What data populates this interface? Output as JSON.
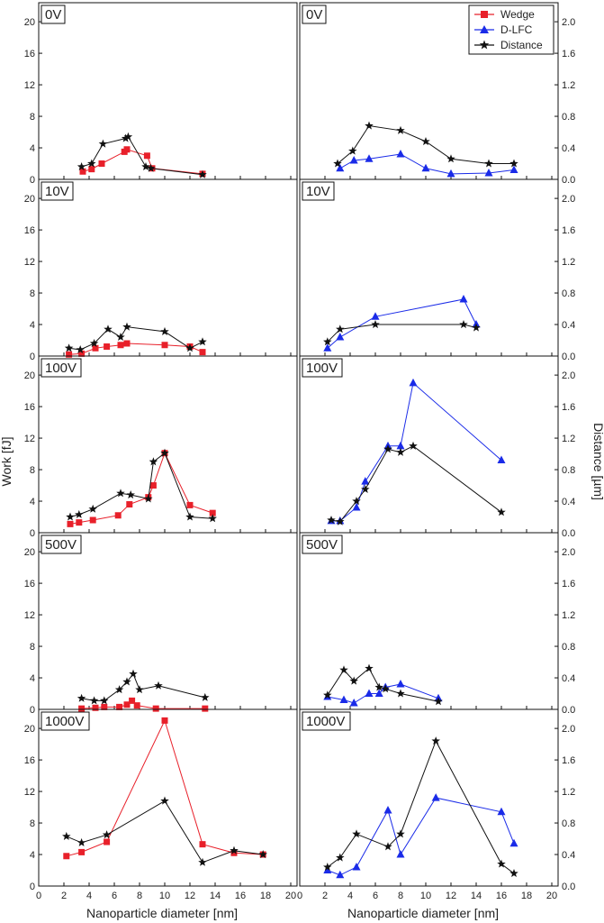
{
  "chart_data": {
    "type": "line",
    "x_label": "Nanoparticle diameter [nm]",
    "y_left_label": "Work [fJ]",
    "y_right_label": "Distance [µm]",
    "x_ticks": [
      "0",
      "2",
      "4",
      "6",
      "8",
      "10",
      "12",
      "14",
      "16",
      "18",
      "20"
    ],
    "y_left_ticks": [
      "0",
      "4",
      "8",
      "12",
      "16",
      "20"
    ],
    "y_right_ticks": [
      "0.0",
      "0.4",
      "0.8",
      "1.2",
      "1.6",
      "2.0"
    ],
    "x_range": [
      0,
      20.5
    ],
    "y_left_range": [
      0,
      21.5
    ],
    "y_right_range": [
      0,
      2.15
    ],
    "legend": {
      "wedge": "Wedge",
      "dlfc": "D-LFC",
      "distance": "Distance"
    },
    "colors": {
      "wedge": "#e8202a",
      "dlfc": "#1a2be8",
      "distance": "#111111"
    },
    "rows": [
      {
        "label": "0V",
        "left": {
          "wedge": [
            [
              3.5,
              1.0
            ],
            [
              4.2,
              1.3
            ],
            [
              5.0,
              2.0
            ],
            [
              6.8,
              3.5
            ],
            [
              7.0,
              3.8
            ],
            [
              8.6,
              3.0
            ],
            [
              9.0,
              1.4
            ],
            [
              13.0,
              0.7
            ]
          ],
          "distance": [
            [
              3.4,
              1.6
            ],
            [
              4.2,
              2.0
            ],
            [
              5.1,
              4.5
            ],
            [
              6.9,
              5.2
            ],
            [
              7.1,
              5.4
            ],
            [
              8.5,
              1.6
            ],
            [
              8.9,
              1.4
            ],
            [
              13.0,
              0.6
            ]
          ]
        },
        "right": {
          "dlfc": [
            [
              3.2,
              0.14
            ],
            [
              4.3,
              0.24
            ],
            [
              5.5,
              0.26
            ],
            [
              8.0,
              0.32
            ],
            [
              10.0,
              0.14
            ],
            [
              12.0,
              0.07
            ],
            [
              15.0,
              0.08
            ],
            [
              17.0,
              0.12
            ]
          ],
          "distance": [
            [
              3.0,
              0.2
            ],
            [
              4.2,
              0.36
            ],
            [
              5.5,
              0.68
            ],
            [
              8.0,
              0.62
            ],
            [
              10.0,
              0.48
            ],
            [
              12.0,
              0.26
            ],
            [
              15.0,
              0.2
            ],
            [
              17.0,
              0.2
            ]
          ]
        }
      },
      {
        "label": "10V",
        "left": {
          "wedge": [
            [
              2.4,
              0.2
            ],
            [
              3.4,
              0.3
            ],
            [
              4.5,
              1.0
            ],
            [
              5.4,
              1.2
            ],
            [
              6.5,
              1.4
            ],
            [
              7.0,
              1.6
            ],
            [
              10.0,
              1.4
            ],
            [
              12.0,
              1.2
            ],
            [
              13.0,
              0.5
            ]
          ],
          "distance": [
            [
              2.4,
              1.0
            ],
            [
              3.3,
              0.8
            ],
            [
              4.4,
              1.6
            ],
            [
              5.5,
              3.4
            ],
            [
              6.5,
              2.4
            ],
            [
              7.0,
              3.7
            ],
            [
              10.0,
              3.1
            ],
            [
              12.0,
              1.0
            ],
            [
              13.0,
              1.8
            ]
          ]
        },
        "right": {
          "dlfc": [
            [
              2.2,
              0.1
            ],
            [
              3.2,
              0.24
            ],
            [
              6.0,
              0.5
            ],
            [
              13.0,
              0.72
            ],
            [
              14.0,
              0.4
            ]
          ],
          "distance": [
            [
              2.2,
              0.18
            ],
            [
              3.2,
              0.34
            ],
            [
              6.0,
              0.4
            ],
            [
              13.0,
              0.4
            ],
            [
              14.0,
              0.36
            ]
          ]
        }
      },
      {
        "label": "100V",
        "left": {
          "wedge": [
            [
              2.5,
              1.1
            ],
            [
              3.2,
              1.3
            ],
            [
              4.3,
              1.6
            ],
            [
              6.3,
              2.2
            ],
            [
              7.2,
              3.6
            ],
            [
              8.7,
              4.5
            ],
            [
              9.1,
              6.0
            ],
            [
              10.0,
              10.1
            ],
            [
              12.0,
              3.5
            ],
            [
              13.8,
              2.5
            ]
          ],
          "distance": [
            [
              2.5,
              2.0
            ],
            [
              3.2,
              2.3
            ],
            [
              4.3,
              3.0
            ],
            [
              6.5,
              5.0
            ],
            [
              7.3,
              4.8
            ],
            [
              8.7,
              4.3
            ],
            [
              9.1,
              9.0
            ],
            [
              10.0,
              10.1
            ],
            [
              12.0,
              2.0
            ],
            [
              13.8,
              1.8
            ]
          ]
        },
        "right": {
          "dlfc": [
            [
              2.5,
              0.15
            ],
            [
              3.2,
              0.15
            ],
            [
              4.5,
              0.32
            ],
            [
              5.2,
              0.65
            ],
            [
              7.0,
              1.1
            ],
            [
              8.0,
              1.1
            ],
            [
              9.0,
              1.9
            ],
            [
              16.0,
              0.92
            ]
          ],
          "distance": [
            [
              2.5,
              0.16
            ],
            [
              3.2,
              0.14
            ],
            [
              4.5,
              0.4
            ],
            [
              5.2,
              0.55
            ],
            [
              7.0,
              1.06
            ],
            [
              8.0,
              1.02
            ],
            [
              9.0,
              1.1
            ],
            [
              16.0,
              0.26
            ]
          ]
        }
      },
      {
        "label": "500V",
        "left": {
          "wedge": [
            [
              3.4,
              0.1
            ],
            [
              4.5,
              0.2
            ],
            [
              5.2,
              0.3
            ],
            [
              6.4,
              0.3
            ],
            [
              7.0,
              0.6
            ],
            [
              7.4,
              1.1
            ],
            [
              7.8,
              0.5
            ],
            [
              9.3,
              0.1
            ],
            [
              13.2,
              0.1
            ]
          ],
          "distance": [
            [
              3.4,
              1.4
            ],
            [
              4.4,
              1.1
            ],
            [
              5.2,
              1.1
            ],
            [
              6.4,
              2.5
            ],
            [
              7.0,
              3.5
            ],
            [
              7.5,
              4.5
            ],
            [
              8.0,
              2.5
            ],
            [
              9.5,
              3.0
            ],
            [
              13.2,
              1.5
            ]
          ]
        },
        "right": {
          "dlfc": [
            [
              2.2,
              0.16
            ],
            [
              3.5,
              0.12
            ],
            [
              4.3,
              0.08
            ],
            [
              5.5,
              0.2
            ],
            [
              6.3,
              0.2
            ],
            [
              6.8,
              0.28
            ],
            [
              8.0,
              0.32
            ],
            [
              11.0,
              0.14
            ]
          ],
          "distance": [
            [
              2.2,
              0.18
            ],
            [
              3.5,
              0.5
            ],
            [
              4.3,
              0.36
            ],
            [
              5.5,
              0.52
            ],
            [
              6.3,
              0.28
            ],
            [
              6.8,
              0.26
            ],
            [
              8.0,
              0.2
            ],
            [
              11.0,
              0.1
            ]
          ]
        }
      },
      {
        "label": "1000V",
        "left": {
          "wedge": [
            [
              2.2,
              3.8
            ],
            [
              3.4,
              4.3
            ],
            [
              5.4,
              5.6
            ],
            [
              10.0,
              21.0
            ],
            [
              13.0,
              5.3
            ],
            [
              15.5,
              4.2
            ],
            [
              17.8,
              4.0
            ]
          ],
          "distance": [
            [
              2.2,
              6.3
            ],
            [
              3.4,
              5.5
            ],
            [
              5.4,
              6.5
            ],
            [
              10.0,
              10.8
            ],
            [
              13.0,
              3.0
            ],
            [
              15.5,
              4.5
            ],
            [
              17.8,
              4.0
            ]
          ]
        },
        "right": {
          "dlfc": [
            [
              2.2,
              0.2
            ],
            [
              3.2,
              0.14
            ],
            [
              4.5,
              0.24
            ],
            [
              7.0,
              0.96
            ],
            [
              8.0,
              0.4
            ],
            [
              10.8,
              1.12
            ],
            [
              16.0,
              0.94
            ],
            [
              17.0,
              0.54
            ]
          ],
          "distance": [
            [
              2.2,
              0.24
            ],
            [
              3.2,
              0.36
            ],
            [
              4.5,
              0.66
            ],
            [
              7.0,
              0.5
            ],
            [
              8.0,
              0.66
            ],
            [
              10.8,
              1.84
            ],
            [
              16.0,
              0.28
            ],
            [
              17.0,
              0.16
            ]
          ]
        }
      }
    ]
  }
}
